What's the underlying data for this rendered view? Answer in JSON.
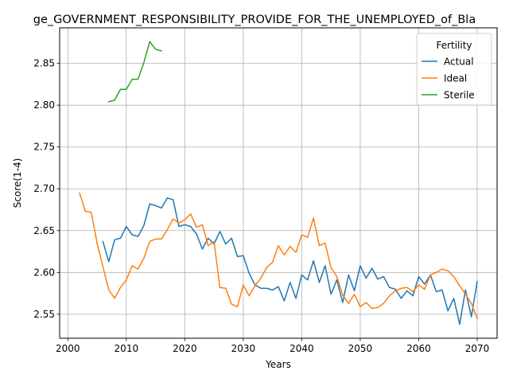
{
  "chart_data": {
    "type": "line",
    "title": "ge_GOVERNMENT_RESPONSIBILITY_PROVIDE_FOR_THE_UNEMPLOYED_of_Bla",
    "xlabel": "Years",
    "ylabel": "Score(1-4)",
    "xlim": [
      1998.6,
      2073.4
    ],
    "ylim": [
      2.5213,
      2.8925
    ],
    "x_ticks": [
      2000,
      2010,
      2020,
      2030,
      2040,
      2050,
      2060,
      2070
    ],
    "x_tick_labels": [
      "2000",
      "2010",
      "2020",
      "2030",
      "2040",
      "2050",
      "2060",
      "2070"
    ],
    "y_ticks": [
      2.55,
      2.6,
      2.65,
      2.7,
      2.75,
      2.8,
      2.85
    ],
    "y_tick_labels": [
      "2.55",
      "2.60",
      "2.65",
      "2.70",
      "2.75",
      "2.80",
      "2.85"
    ],
    "grid": true,
    "legend": {
      "title": "Fertility",
      "placement": "top-right"
    },
    "series": [
      {
        "name": "Actual",
        "color": "#1f77b4",
        "x": [
          2006,
          2007,
          2008,
          2009,
          2010,
          2011,
          2012,
          2013,
          2014,
          2015,
          2016,
          2017,
          2018,
          2019,
          2020,
          2021,
          2022,
          2023,
          2024,
          2025,
          2026,
          2027,
          2028,
          2029,
          2030,
          2031,
          2032,
          2033,
          2034,
          2035,
          2036,
          2037,
          2038,
          2039,
          2040,
          2041,
          2042,
          2043,
          2044,
          2045,
          2046,
          2047,
          2048,
          2049,
          2050,
          2051,
          2052,
          2053,
          2054,
          2055,
          2056,
          2057,
          2058,
          2059,
          2060,
          2061,
          2062,
          2063,
          2064,
          2065,
          2066,
          2067,
          2068,
          2069,
          2070
        ],
        "y": [
          2.637,
          2.613,
          2.639,
          2.641,
          2.655,
          2.645,
          2.643,
          2.656,
          2.682,
          2.68,
          2.677,
          2.689,
          2.687,
          2.655,
          2.657,
          2.655,
          2.646,
          2.628,
          2.641,
          2.634,
          2.649,
          2.634,
          2.641,
          2.619,
          2.62,
          2.599,
          2.585,
          2.581,
          2.581,
          2.579,
          2.583,
          2.566,
          2.588,
          2.569,
          2.597,
          2.591,
          2.614,
          2.588,
          2.608,
          2.574,
          2.591,
          2.564,
          2.597,
          2.578,
          2.608,
          2.593,
          2.605,
          2.592,
          2.595,
          2.582,
          2.58,
          2.569,
          2.578,
          2.572,
          2.595,
          2.586,
          2.597,
          2.577,
          2.579,
          2.554,
          2.569,
          2.538,
          2.579,
          2.547,
          2.589
        ]
      },
      {
        "name": "Ideal",
        "color": "#ff7f0e",
        "x": [
          2002,
          2003,
          2004,
          2005,
          2006,
          2007,
          2008,
          2009,
          2010,
          2011,
          2012,
          2013,
          2014,
          2015,
          2016,
          2017,
          2018,
          2019,
          2020,
          2021,
          2022,
          2023,
          2024,
          2025,
          2026,
          2027,
          2028,
          2029,
          2030,
          2031,
          2032,
          2033,
          2034,
          2035,
          2036,
          2037,
          2038,
          2039,
          2040,
          2041,
          2042,
          2043,
          2044,
          2045,
          2046,
          2047,
          2048,
          2049,
          2050,
          2051,
          2052,
          2053,
          2054,
          2055,
          2056,
          2057,
          2058,
          2059,
          2060,
          2061,
          2062,
          2063,
          2064,
          2065,
          2066,
          2067,
          2068,
          2069,
          2070
        ],
        "y": [
          2.695,
          2.673,
          2.672,
          2.635,
          2.607,
          2.579,
          2.569,
          2.582,
          2.591,
          2.608,
          2.604,
          2.617,
          2.637,
          2.64,
          2.64,
          2.651,
          2.664,
          2.659,
          2.663,
          2.67,
          2.654,
          2.657,
          2.632,
          2.637,
          2.582,
          2.581,
          2.562,
          2.559,
          2.585,
          2.572,
          2.584,
          2.593,
          2.606,
          2.612,
          2.632,
          2.621,
          2.631,
          2.624,
          2.645,
          2.642,
          2.665,
          2.632,
          2.635,
          2.606,
          2.595,
          2.573,
          2.563,
          2.574,
          2.559,
          2.564,
          2.557,
          2.558,
          2.563,
          2.572,
          2.578,
          2.581,
          2.582,
          2.577,
          2.585,
          2.58,
          2.597,
          2.6,
          2.604,
          2.602,
          2.595,
          2.584,
          2.574,
          2.563,
          2.545
        ]
      },
      {
        "name": "Sterile",
        "color": "#2ca02c",
        "x": [
          2007,
          2008,
          2009,
          2010,
          2011,
          2012,
          2013,
          2014,
          2015,
          2016
        ],
        "y": [
          2.804,
          2.806,
          2.819,
          2.819,
          2.831,
          2.831,
          2.851,
          2.876,
          2.867,
          2.865
        ]
      }
    ]
  }
}
